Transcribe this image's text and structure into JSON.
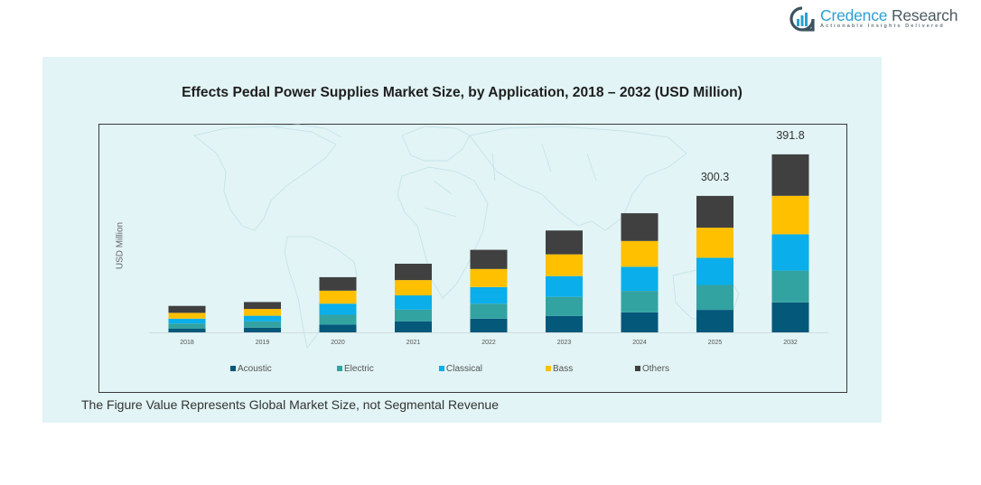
{
  "brand": {
    "name_part1": "Credence",
    "name_part2": "Research",
    "tagline": "Actionable Insights Delivered",
    "icon": "bar-chart-logo-icon"
  },
  "footnote": "The Figure Value Represents Global Market Size, not Segmental Revenue",
  "chart_data": {
    "type": "bar",
    "stacked": true,
    "title": "Effects Pedal Power Supplies Market Size, by Application, 2018 – 2032 (USD Million)",
    "xlabel": "",
    "ylabel": "USD Million",
    "grid": false,
    "legend": "bottom",
    "categories": [
      "2018",
      "2019",
      "2020",
      "2021",
      "2022",
      "2023",
      "2024",
      "2025",
      "2032"
    ],
    "series": [
      {
        "name": "Acoustic",
        "color": "#04587a",
        "values": [
          8.0,
          10.3,
          17.1,
          24.5,
          30.3,
          35.9,
          43.9,
          49.6,
          66.0
        ]
      },
      {
        "name": "Electric",
        "color": "#33a3a2",
        "values": [
          11.5,
          13.7,
          21.7,
          25.7,
          33.0,
          42.2,
          47.4,
          54.7,
          70.0
        ]
      },
      {
        "name": "Classical",
        "color": "#0aaeea",
        "values": [
          10.8,
          12.5,
          24.5,
          31.3,
          36.4,
          45.7,
          53.0,
          59.9,
          79.9
        ]
      },
      {
        "name": "Bass",
        "color": "#ffc000",
        "values": [
          12.5,
          14.9,
          28.6,
          33.7,
          39.8,
          47.9,
          56.9,
          66.2,
          84.7
        ]
      },
      {
        "name": "Others",
        "color": "#404040",
        "values": [
          15.4,
          15.4,
          29.6,
          35.9,
          42.2,
          52.5,
          61.0,
          69.9,
          91.2
        ]
      }
    ],
    "data_labels": [
      {
        "category": "2025",
        "label": "300.3"
      },
      {
        "category": "2032",
        "label": "391.8"
      }
    ]
  }
}
